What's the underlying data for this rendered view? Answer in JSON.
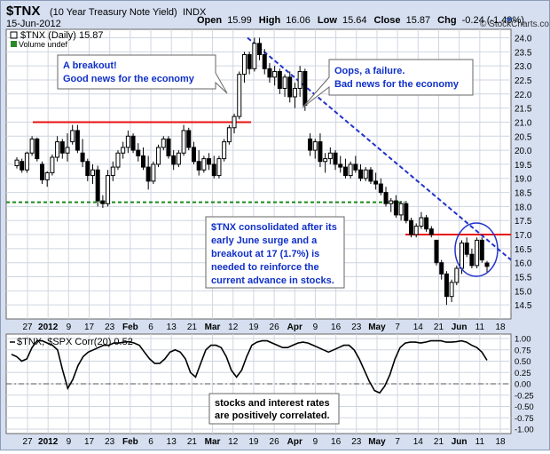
{
  "header": {
    "symbol": "$TNX",
    "name": "(10 Year Treasury Note Yield)",
    "exchange": "INDX",
    "date": "15-Jun-2012",
    "open_label": "Open",
    "open": "15.99",
    "high_label": "High",
    "high": "16.06",
    "low_label": "Low",
    "low": "15.64",
    "close_label": "Close",
    "close": "15.87",
    "chg_label": "Chg",
    "chg": "-0.24 (-1.49%)",
    "watermark": "© StockCharts.com"
  },
  "legend": {
    "main": "$TNX (Daily) 15.87",
    "volume": "Volume undef",
    "corr": "$TNX, $SPX Corr(20) 0.52"
  },
  "annotations": {
    "breakout": [
      "A breakout!",
      "Good news for the economy"
    ],
    "failure": [
      "Oops, a failure.",
      "Bad news for the economy"
    ],
    "consolidated": [
      "$TNX consolidated after its",
      "early June surge and a",
      "breakout at 17 (1.7%) is",
      "needed to reinforce the",
      "current advance in stocks."
    ],
    "correlation": [
      "stocks and interest rates",
      "are positively correlated."
    ]
  },
  "colors": {
    "candle": "#000000",
    "resistance": "#e81010",
    "support": "#1a8a1a",
    "trendline": "#2233cc",
    "annotation_text": "#1030c8",
    "background": "#d5dff0"
  },
  "chart_data": [
    {
      "type": "candlestick",
      "title": "$TNX (Daily) 15.87",
      "ylim": [
        14.0,
        24.3
      ],
      "y_ticks": [
        "14.5",
        "15.0",
        "15.5",
        "16.0",
        "16.5",
        "17.0",
        "17.5",
        "18.0",
        "18.5",
        "19.0",
        "19.5",
        "20.0",
        "20.5",
        "21.0",
        "21.5",
        "22.0",
        "22.5",
        "23.0",
        "23.5",
        "24.0"
      ],
      "x_tick_labels": [
        "27",
        "2012",
        "9",
        "17",
        "23",
        "Feb",
        "6",
        "13",
        "21",
        "Mar",
        "12",
        "19",
        "26",
        "Apr",
        "9",
        "16",
        "23",
        "May",
        "7",
        "14",
        "21",
        "Jun",
        "11",
        "18"
      ],
      "candles": [
        [
          19.45,
          19.75,
          19.35,
          19.65
        ],
        [
          19.6,
          19.7,
          19.2,
          19.3
        ],
        [
          19.3,
          19.95,
          19.2,
          19.9
        ],
        [
          19.9,
          20.5,
          19.8,
          20.4
        ],
        [
          20.4,
          20.45,
          19.6,
          19.7
        ],
        [
          19.5,
          19.6,
          18.8,
          18.95
        ],
        [
          18.95,
          19.25,
          18.7,
          19.2
        ],
        [
          19.2,
          19.85,
          19.1,
          19.75
        ],
        [
          19.75,
          20.5,
          19.6,
          20.3
        ],
        [
          20.3,
          20.4,
          19.7,
          19.9
        ],
        [
          19.9,
          20.6,
          19.6,
          20.1
        ],
        [
          20.3,
          20.9,
          20.2,
          20.7
        ],
        [
          20.7,
          20.9,
          19.9,
          20.0
        ],
        [
          19.9,
          20.4,
          19.4,
          19.6
        ],
        [
          19.6,
          19.7,
          18.9,
          19.1
        ],
        [
          19.1,
          19.5,
          18.8,
          19.3
        ],
        [
          19.3,
          19.45,
          18.0,
          18.2
        ],
        [
          18.2,
          18.4,
          17.95,
          18.1
        ],
        [
          18.1,
          19.3,
          18.0,
          19.1
        ],
        [
          19.1,
          19.6,
          18.9,
          19.4
        ],
        [
          19.4,
          20.0,
          19.3,
          19.9
        ],
        [
          19.9,
          20.3,
          19.7,
          20.1
        ],
        [
          20.1,
          20.7,
          19.9,
          20.5
        ],
        [
          20.5,
          20.6,
          19.9,
          20.0
        ],
        [
          20.0,
          20.25,
          19.6,
          19.8
        ],
        [
          19.8,
          20.1,
          19.3,
          19.4
        ],
        [
          19.4,
          19.8,
          18.6,
          18.9
        ],
        [
          18.9,
          19.6,
          18.8,
          19.5
        ],
        [
          19.5,
          20.2,
          19.4,
          20.1
        ],
        [
          20.1,
          20.5,
          20.0,
          20.4
        ],
        [
          20.4,
          20.5,
          19.7,
          19.8
        ],
        [
          19.8,
          20.0,
          19.3,
          19.5
        ],
        [
          19.5,
          20.0,
          19.4,
          19.9
        ],
        [
          19.9,
          20.9,
          19.8,
          20.7
        ],
        [
          20.7,
          20.8,
          20.0,
          20.1
        ],
        [
          20.1,
          20.3,
          19.5,
          19.6
        ],
        [
          19.6,
          20.0,
          19.1,
          19.3
        ],
        [
          19.3,
          19.8,
          19.2,
          19.7
        ],
        [
          19.7,
          19.9,
          19.3,
          19.5
        ],
        [
          19.5,
          19.8,
          19.0,
          19.1
        ],
        [
          19.1,
          19.8,
          19.0,
          19.7
        ],
        [
          19.7,
          20.4,
          19.6,
          20.3
        ],
        [
          20.3,
          20.9,
          20.2,
          20.8
        ],
        [
          20.8,
          21.3,
          20.6,
          21.2
        ],
        [
          21.2,
          22.8,
          21.1,
          22.7
        ],
        [
          22.7,
          23.5,
          22.4,
          23.4
        ],
        [
          23.4,
          23.5,
          22.7,
          22.9
        ],
        [
          22.9,
          24.0,
          22.8,
          23.8
        ],
        [
          23.8,
          24.0,
          23.2,
          23.4
        ],
        [
          23.4,
          23.6,
          22.7,
          22.9
        ],
        [
          22.9,
          23.1,
          22.4,
          22.6
        ],
        [
          22.6,
          23.0,
          22.3,
          22.8
        ],
        [
          22.8,
          22.9,
          22.0,
          22.2
        ],
        [
          22.2,
          22.7,
          21.9,
          22.6
        ],
        [
          22.6,
          22.8,
          21.7,
          21.9
        ],
        [
          21.9,
          22.4,
          21.5,
          22.2
        ],
        [
          22.2,
          23.0,
          21.9,
          22.8
        ],
        [
          22.8,
          22.9,
          21.4,
          21.6
        ],
        [
          20.4,
          20.6,
          19.8,
          20.0
        ],
        [
          20.0,
          20.4,
          19.7,
          20.3
        ],
        [
          20.3,
          20.6,
          19.4,
          19.6
        ],
        [
          19.6,
          19.9,
          19.2,
          19.7
        ],
        [
          19.7,
          20.1,
          19.5,
          19.9
        ],
        [
          19.9,
          20.0,
          19.3,
          19.5
        ],
        [
          19.5,
          19.8,
          19.2,
          19.4
        ],
        [
          19.4,
          19.7,
          19.0,
          19.1
        ],
        [
          19.1,
          19.6,
          19.0,
          19.5
        ],
        [
          19.5,
          19.8,
          19.2,
          19.3
        ],
        [
          19.3,
          19.5,
          18.9,
          19.0
        ],
        [
          19.0,
          19.4,
          18.9,
          19.3
        ],
        [
          19.3,
          19.4,
          18.8,
          18.9
        ],
        [
          18.9,
          19.2,
          18.6,
          18.8
        ],
        [
          18.8,
          19.0,
          18.4,
          18.5
        ],
        [
          18.5,
          18.7,
          18.0,
          18.1
        ],
        [
          18.1,
          18.3,
          17.8,
          18.2
        ],
        [
          18.2,
          18.4,
          17.6,
          17.7
        ],
        [
          17.7,
          18.2,
          17.5,
          18.1
        ],
        [
          18.1,
          18.2,
          17.4,
          17.5
        ],
        [
          17.5,
          17.6,
          16.9,
          17.0
        ],
        [
          17.0,
          17.4,
          16.9,
          17.3
        ],
        [
          17.3,
          17.8,
          17.2,
          17.6
        ],
        [
          17.6,
          17.7,
          17.1,
          17.2
        ],
        [
          17.2,
          17.3,
          16.9,
          17.0
        ],
        [
          16.8,
          16.8,
          15.9,
          16.0
        ],
        [
          16.0,
          16.1,
          15.4,
          15.6
        ],
        [
          15.6,
          15.7,
          14.5,
          14.8
        ],
        [
          14.8,
          15.4,
          14.6,
          15.3
        ],
        [
          15.3,
          15.9,
          15.2,
          15.8
        ],
        [
          15.8,
          16.8,
          15.6,
          16.7
        ],
        [
          16.7,
          16.9,
          16.2,
          16.3
        ],
        [
          16.3,
          16.5,
          15.8,
          15.9
        ],
        [
          15.9,
          16.9,
          15.8,
          16.8
        ],
        [
          16.8,
          16.9,
          16.0,
          16.1
        ],
        [
          15.99,
          16.06,
          15.64,
          15.87
        ]
      ],
      "resistance_levels": [
        21.0,
        17.0
      ],
      "support_level": 18.15,
      "trendline": {
        "from": 24.0,
        "to": 16.1
      }
    },
    {
      "type": "line",
      "title": "$TNX, $SPX Corr(20) 0.52",
      "ylim": [
        -1.0,
        1.0
      ],
      "y_ticks": [
        "1.00",
        "0.75",
        "0.50",
        "0.25",
        "0.00",
        "-0.25",
        "-0.50",
        "-0.75",
        "-1.00"
      ],
      "values": [
        0.65,
        0.6,
        0.5,
        0.55,
        0.8,
        0.95,
        0.95,
        0.9,
        0.85,
        0.75,
        0.3,
        -0.1,
        0.1,
        0.4,
        0.6,
        0.7,
        0.75,
        0.8,
        0.85,
        0.85,
        0.9,
        0.9,
        0.92,
        0.93,
        0.9,
        0.85,
        0.7,
        0.55,
        0.45,
        0.45,
        0.55,
        0.7,
        0.75,
        0.7,
        0.55,
        0.25,
        0.15,
        0.45,
        0.75,
        0.85,
        0.85,
        0.8,
        0.6,
        0.3,
        0.15,
        0.3,
        0.6,
        0.85,
        0.92,
        0.95,
        0.95,
        0.9,
        0.85,
        0.8,
        0.8,
        0.85,
        0.9,
        0.92,
        0.9,
        0.85,
        0.8,
        0.75,
        0.7,
        0.75,
        0.8,
        0.85,
        0.85,
        0.75,
        0.55,
        0.3,
        0.05,
        -0.15,
        -0.2,
        -0.05,
        0.2,
        0.55,
        0.8,
        0.9,
        0.92,
        0.92,
        0.9,
        0.92,
        0.95,
        0.95,
        0.95,
        0.92,
        0.92,
        0.93,
        0.95,
        0.92,
        0.85,
        0.8,
        0.7,
        0.52
      ]
    }
  ]
}
